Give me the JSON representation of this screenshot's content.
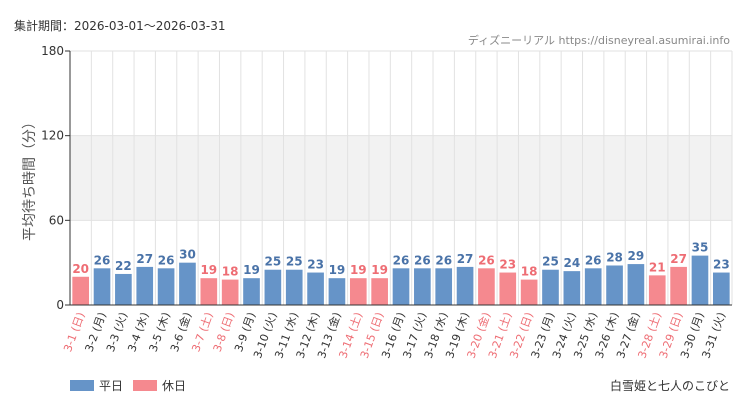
{
  "header": {
    "period_label": "集計期間：2026-03-01～2026-03-31",
    "source_label": "ディズニーリアル https://disneyreal.asumirai.info"
  },
  "footer": {
    "attraction_name": "白雪姫と七人のこびと"
  },
  "colors": {
    "weekday": "#6694c8",
    "holiday": "#f5898f",
    "weekday_label": "#4a73a8",
    "holiday_label": "#ee6d74",
    "band": "#f2f2f2",
    "grid": "#e2e2e2",
    "axis": "#333333"
  },
  "chart_data": {
    "type": "bar",
    "ylabel": "平均待ち時間（分）",
    "xlabel": "",
    "ylim": [
      0,
      180
    ],
    "yticks": [
      0,
      60,
      120,
      180
    ],
    "grid": true,
    "legend": "bottom-left",
    "series": [
      {
        "name": "平日",
        "color": "#6694c8"
      },
      {
        "name": "休日",
        "color": "#f5898f"
      }
    ],
    "categories": [
      "3-1 (日)",
      "3-2 (月)",
      "3-3 (火)",
      "3-4 (水)",
      "3-5 (木)",
      "3-6 (金)",
      "3-7 (土)",
      "3-8 (日)",
      "3-9 (月)",
      "3-10 (火)",
      "3-11 (水)",
      "3-12 (木)",
      "3-13 (金)",
      "3-14 (土)",
      "3-15 (日)",
      "3-16 (月)",
      "3-17 (火)",
      "3-18 (水)",
      "3-19 (木)",
      "3-20 (金)",
      "3-21 (土)",
      "3-22 (日)",
      "3-23 (月)",
      "3-24 (火)",
      "3-25 (水)",
      "3-26 (木)",
      "3-27 (金)",
      "3-28 (土)",
      "3-29 (日)",
      "3-30 (月)",
      "3-31 (火)"
    ],
    "values": [
      20,
      26,
      22,
      27,
      26,
      30,
      19,
      18,
      19,
      25,
      25,
      23,
      19,
      19,
      19,
      26,
      26,
      26,
      27,
      26,
      23,
      18,
      25,
      24,
      26,
      28,
      29,
      21,
      27,
      35,
      23
    ],
    "day_type": [
      "休日",
      "平日",
      "平日",
      "平日",
      "平日",
      "平日",
      "休日",
      "休日",
      "平日",
      "平日",
      "平日",
      "平日",
      "平日",
      "休日",
      "休日",
      "平日",
      "平日",
      "平日",
      "平日",
      "休日",
      "休日",
      "休日",
      "平日",
      "平日",
      "平日",
      "平日",
      "平日",
      "休日",
      "休日",
      "平日",
      "平日"
    ]
  }
}
